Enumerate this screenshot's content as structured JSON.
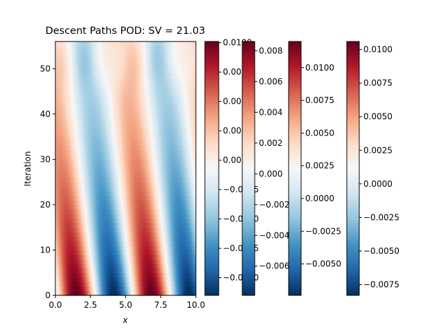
{
  "chart_data": [
    {
      "type": "heatmap",
      "title": "Descent Paths POD: SV = 21.03",
      "xlabel": "x",
      "ylabel": "Iteration",
      "xlim": [
        0,
        10
      ],
      "ylim": [
        0,
        56
      ],
      "xticks": [
        0,
        2.5,
        5,
        7.5,
        10
      ],
      "xtick_labels": [
        "0.0",
        "2.5",
        "5.0",
        "7.5",
        "10.0"
      ],
      "yticks": [
        0,
        10,
        20,
        30,
        40,
        50
      ],
      "ytick_labels": [
        "0",
        "10",
        "20",
        "30",
        "40",
        "50"
      ],
      "colormap": "RdBu_r",
      "grid": false,
      "description_points": [
        {
          "x": 2.2,
          "iteration": 3,
          "value": 0.0105
        },
        {
          "x": 7.6,
          "iteration": 3,
          "value": 0.0105
        },
        {
          "x": 4.9,
          "iteration": 3,
          "value": -0.0105
        },
        {
          "x": 0.3,
          "iteration": 3,
          "value": -0.0105
        }
      ]
    },
    {
      "type": "colorbar",
      "colormap": "RdBu_r",
      "vmin": -0.0115,
      "vmax": 0.0101,
      "ticks": [
        -0.01,
        -0.0075,
        -0.005,
        -0.0025,
        0,
        0.0025,
        0.005,
        0.0075,
        0.01
      ],
      "tick_labels": [
        "−0.0100",
        "−0.0075",
        "−0.0050",
        "−0.0025",
        "0.0000",
        "0.0025",
        "0.0050",
        "0.0075",
        "0.0100"
      ]
    },
    {
      "type": "colorbar",
      "colormap": "RdBu_r",
      "vmin": -0.0079,
      "vmax": 0.0086,
      "ticks": [
        -0.006,
        -0.004,
        -0.002,
        0,
        0.002,
        0.004,
        0.006,
        0.008
      ],
      "tick_labels": [
        "−0.006",
        "−0.004",
        "−0.002",
        "0.000",
        "0.002",
        "0.004",
        "0.006",
        "0.008"
      ]
    },
    {
      "type": "colorbar",
      "colormap": "RdBu_r",
      "vmin": -0.0074,
      "vmax": 0.012,
      "ticks": [
        -0.005,
        -0.0025,
        0,
        0.0025,
        0.005,
        0.0075,
        0.01
      ],
      "tick_labels": [
        "−0.0050",
        "−0.0025",
        "0.0000",
        "0.0025",
        "0.0050",
        "0.0075",
        "0.0100"
      ]
    },
    {
      "type": "colorbar",
      "colormap": "RdBu_r",
      "vmin": -0.0083,
      "vmax": 0.0106,
      "ticks": [
        -0.0075,
        -0.005,
        -0.0025,
        0,
        0.0025,
        0.005,
        0.0075,
        0.01
      ],
      "tick_labels": [
        "−0.0075",
        "−0.0050",
        "−0.0025",
        "0.0000",
        "0.0025",
        "0.0050",
        "0.0075",
        "0.0100"
      ]
    }
  ]
}
